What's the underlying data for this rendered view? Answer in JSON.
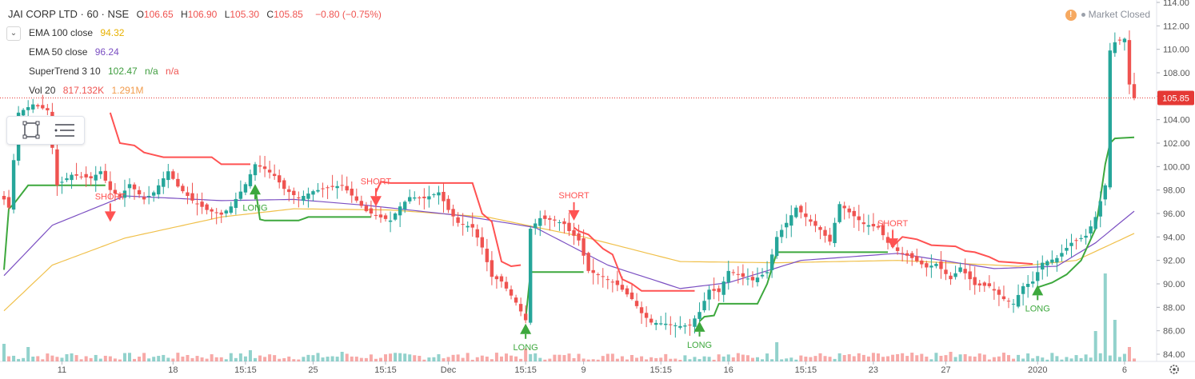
{
  "header": {
    "symbol": "JAI CORP LTD · 60 · NSE",
    "ohlc": [
      {
        "label": "O",
        "value": "106.65"
      },
      {
        "label": "H",
        "value": "106.90"
      },
      {
        "label": "L",
        "value": "105.30"
      },
      {
        "label": "C",
        "value": "105.85"
      }
    ],
    "change": "−0.80 (−0.75%)"
  },
  "indicators": [
    {
      "name": "EMA 100 close",
      "values": [
        "94.32"
      ],
      "color": "#e8b100"
    },
    {
      "name": "EMA 50 close",
      "values": [
        "96.24"
      ],
      "color": "#7b4fc2"
    },
    {
      "name": "SuperTrend 3 10",
      "values": [
        "102.47",
        "n/a",
        "n/a"
      ],
      "color": "#3d9c3d"
    },
    {
      "name": "Vol 20",
      "values": [
        "817.132K",
        "1.291M"
      ],
      "color": "#ef5350"
    }
  ],
  "market_status": {
    "icon": "warning-icon",
    "text": "Market Closed"
  },
  "icons": {
    "collapse": "chevron-down-icon",
    "rectangle": "rectangle-select-icon",
    "list": "object-tree-icon",
    "settings": "gear-icon"
  },
  "colors": {
    "up": "#26a69a",
    "down": "#ef5350",
    "ema100": "#f0c04a",
    "ema50": "#7b4fc2",
    "supertrend_up": "#3da83d",
    "supertrend_down": "#ff5252",
    "last_price": "#e53935"
  },
  "chart_data": {
    "type": "candlestick",
    "title": "JAI CORP LTD · 60 · NSE",
    "ylim": [
      84,
      114
    ],
    "y_ticks": [
      84,
      86,
      88,
      90,
      92,
      94,
      96,
      98,
      100,
      102,
      104,
      106,
      108,
      110,
      112,
      114
    ],
    "x_ticks": [
      "11",
      "18",
      "15:15",
      "25",
      "15:15",
      "Dec",
      "15:15",
      "9",
      "15:15",
      "16",
      "15:15",
      "23",
      "27",
      "2020",
      "6"
    ],
    "last_price": "105.85",
    "supertrend_last": "102.47",
    "signals": [
      {
        "label": "SHORT",
        "type": "short",
        "bar": 22,
        "price": 95.5
      },
      {
        "label": "LONG",
        "type": "long",
        "bar": 52,
        "price": 98.3
      },
      {
        "label": "SHORT",
        "type": "short",
        "bar": 77,
        "price": 96.8
      },
      {
        "label": "LONG",
        "type": "long",
        "bar": 108,
        "price": 86.4
      },
      {
        "label": "SHORT",
        "type": "short",
        "bar": 118,
        "price": 95.6
      },
      {
        "label": "LONG",
        "type": "long",
        "bar": 144,
        "price": 86.6
      },
      {
        "label": "SHORT",
        "type": "short",
        "bar": 184,
        "price": 93.2
      },
      {
        "label": "LONG",
        "type": "long",
        "bar": 214,
        "price": 89.7
      }
    ],
    "anchors": {
      "close": [
        [
          0,
          97.2
        ],
        [
          1,
          96.5
        ],
        [
          3,
          104.6
        ],
        [
          6,
          105.3
        ],
        [
          9,
          104.8
        ],
        [
          11,
          98.4
        ],
        [
          14,
          99.3
        ],
        [
          18,
          99.0
        ],
        [
          20,
          99.6
        ],
        [
          22,
          98.0
        ],
        [
          24,
          97.4
        ],
        [
          26,
          98.5
        ],
        [
          29,
          97.2
        ],
        [
          31,
          97.8
        ],
        [
          34,
          99.6
        ],
        [
          36,
          98.3
        ],
        [
          39,
          97.1
        ],
        [
          42,
          96.3
        ],
        [
          45,
          95.9
        ],
        [
          47,
          96.6
        ],
        [
          50,
          98.5
        ],
        [
          52,
          100.2
        ],
        [
          54,
          99.8
        ],
        [
          56,
          99.2
        ],
        [
          58,
          98.1
        ],
        [
          61,
          97.3
        ],
        [
          64,
          97.9
        ],
        [
          67,
          98.2
        ],
        [
          70,
          98.4
        ],
        [
          73,
          97.1
        ],
        [
          75,
          96.2
        ],
        [
          77,
          95.8
        ],
        [
          80,
          95.4
        ],
        [
          82,
          96.6
        ],
        [
          84,
          97.4
        ],
        [
          87,
          97.3
        ],
        [
          90,
          97.8
        ],
        [
          92,
          96.3
        ],
        [
          94,
          95.2
        ],
        [
          97,
          94.8
        ],
        [
          99,
          93.1
        ],
        [
          101,
          90.6
        ],
        [
          103,
          90.2
        ],
        [
          106,
          88.4
        ],
        [
          108,
          86.9
        ],
        [
          109,
          94.7
        ],
        [
          111,
          95.6
        ],
        [
          114,
          95.4
        ],
        [
          116,
          95.1
        ],
        [
          117,
          94.5
        ],
        [
          119,
          93.7
        ],
        [
          121,
          91.1
        ],
        [
          124,
          90.6
        ],
        [
          127,
          89.9
        ],
        [
          130,
          88.7
        ],
        [
          132,
          87.5
        ],
        [
          134,
          86.7
        ],
        [
          137,
          86.6
        ],
        [
          140,
          86.4
        ],
        [
          142,
          86.5
        ],
        [
          144,
          87.6
        ],
        [
          146,
          89.5
        ],
        [
          148,
          89.3
        ],
        [
          150,
          91.1
        ],
        [
          153,
          90.6
        ],
        [
          155,
          90.3
        ],
        [
          158,
          91.0
        ],
        [
          160,
          94.0
        ],
        [
          162,
          95.2
        ],
        [
          164,
          96.5
        ],
        [
          167,
          95.3
        ],
        [
          169,
          94.6
        ],
        [
          171,
          93.6
        ],
        [
          173,
          96.8
        ],
        [
          175,
          96.1
        ],
        [
          178,
          95.1
        ],
        [
          181,
          94.8
        ],
        [
          183,
          93.5
        ],
        [
          185,
          92.8
        ],
        [
          188,
          92.2
        ],
        [
          191,
          91.4
        ],
        [
          193,
          91.7
        ],
        [
          196,
          90.4
        ],
        [
          198,
          91.4
        ],
        [
          201,
          89.9
        ],
        [
          204,
          89.8
        ],
        [
          207,
          88.7
        ],
        [
          209,
          88.3
        ],
        [
          211,
          89.8
        ],
        [
          213,
          90.2
        ],
        [
          215,
          91.8
        ],
        [
          218,
          92.2
        ],
        [
          221,
          93.5
        ],
        [
          224,
          94.1
        ],
        [
          226,
          95.7
        ],
        [
          228,
          98.4
        ],
        [
          229,
          109.9
        ],
        [
          230,
          110.6
        ],
        [
          232,
          110.9
        ],
        [
          233,
          107.0
        ],
        [
          234,
          105.85
        ]
      ],
      "ema50": [
        [
          0,
          90.7
        ],
        [
          10,
          95.0
        ],
        [
          25,
          97.5
        ],
        [
          45,
          97.1
        ],
        [
          60,
          97.2
        ],
        [
          75,
          96.7
        ],
        [
          95,
          95.8
        ],
        [
          110,
          94.8
        ],
        [
          125,
          91.6
        ],
        [
          140,
          89.6
        ],
        [
          150,
          90.1
        ],
        [
          165,
          92.0
        ],
        [
          185,
          92.6
        ],
        [
          205,
          91.3
        ],
        [
          218,
          91.5
        ],
        [
          226,
          93.5
        ],
        [
          234,
          96.2
        ]
      ],
      "ema100": [
        [
          0,
          87.7
        ],
        [
          10,
          91.6
        ],
        [
          25,
          93.9
        ],
        [
          45,
          95.7
        ],
        [
          60,
          96.4
        ],
        [
          80,
          96.3
        ],
        [
          100,
          95.7
        ],
        [
          120,
          94.0
        ],
        [
          140,
          91.9
        ],
        [
          160,
          91.8
        ],
        [
          185,
          92.0
        ],
        [
          210,
          91.5
        ],
        [
          222,
          92.0
        ],
        [
          234,
          94.3
        ]
      ],
      "supertrend": [
        {
          "dir": "up",
          "points": [
            [
              0,
              91.2
            ],
            [
              1,
              96.4
            ],
            [
              2,
              96.8
            ],
            [
              5,
              98.4
            ],
            [
              21,
              98.4
            ]
          ]
        },
        {
          "dir": "down",
          "points": [
            [
              22,
              104.6
            ],
            [
              24,
              102.0
            ],
            [
              27,
              101.8
            ],
            [
              29,
              101.2
            ],
            [
              31,
              101.0
            ],
            [
              33,
              100.8
            ],
            [
              43,
              100.8
            ],
            [
              45,
              100.2
            ],
            [
              51,
              100.2
            ]
          ]
        },
        {
          "dir": "up",
          "points": [
            [
              52,
              98.3
            ],
            [
              53,
              95.5
            ],
            [
              54,
              95.4
            ],
            [
              61,
              95.4
            ],
            [
              63,
              95.7
            ],
            [
              76,
              95.7
            ]
          ]
        },
        {
          "dir": "down",
          "points": [
            [
              77,
              97.8
            ],
            [
              78,
              98.7
            ],
            [
              80,
              98.6
            ],
            [
              97,
              98.6
            ],
            [
              99,
              96.0
            ],
            [
              101,
              95.3
            ],
            [
              103,
              91.9
            ],
            [
              105,
              91.5
            ],
            [
              107,
              91.6
            ]
          ]
        },
        {
          "dir": "up",
          "points": [
            [
              108,
              87.0
            ],
            [
              109,
              91.0
            ],
            [
              120,
              91.0
            ]
          ]
        },
        {
          "dir": "down",
          "points": [
            [
              118,
              94.8
            ],
            [
              119,
              94.5
            ],
            [
              121,
              94.2
            ],
            [
              124,
              93.0
            ],
            [
              126,
              92.5
            ],
            [
              128,
              90.4
            ],
            [
              130,
              90.0
            ],
            [
              132,
              89.4
            ],
            [
              143,
              89.4
            ]
          ]
        },
        {
          "dir": "up",
          "points": [
            [
              144,
              86.8
            ],
            [
              145,
              87.2
            ],
            [
              147,
              87.3
            ],
            [
              148,
              88.3
            ],
            [
              156,
              88.3
            ],
            [
              158,
              90.0
            ],
            [
              160,
              92.7
            ],
            [
              180,
              92.7
            ],
            [
              183,
              92.7
            ]
          ]
        },
        {
          "dir": "down",
          "points": [
            [
              184,
              93.2
            ],
            [
              186,
              94.0
            ],
            [
              189,
              93.8
            ],
            [
              192,
              93.3
            ],
            [
              197,
              93.2
            ],
            [
              199,
              92.8
            ],
            [
              201,
              92.7
            ],
            [
              204,
              92.3
            ],
            [
              206,
              91.9
            ],
            [
              213,
              91.7
            ]
          ]
        },
        {
          "dir": "up",
          "points": [
            [
              214,
              89.7
            ],
            [
              217,
              90.1
            ],
            [
              220,
              90.8
            ],
            [
              223,
              92.0
            ],
            [
              226,
              94.7
            ],
            [
              227,
              97.3
            ],
            [
              228,
              100.2
            ],
            [
              229,
              102.0
            ],
            [
              230,
              102.4
            ],
            [
              234,
              102.5
            ]
          ]
        }
      ],
      "volume_spikes": [
        [
          0,
          22
        ],
        [
          5,
          18
        ],
        [
          14,
          10
        ],
        [
          38,
          8
        ],
        [
          51,
          14
        ],
        [
          70,
          12
        ],
        [
          90,
          9
        ],
        [
          108,
          16
        ],
        [
          130,
          8
        ],
        [
          160,
          24
        ],
        [
          175,
          9
        ],
        [
          196,
          12
        ],
        [
          212,
          10
        ],
        [
          226,
          38
        ],
        [
          228,
          110
        ],
        [
          230,
          52
        ],
        [
          233,
          18
        ]
      ]
    }
  }
}
